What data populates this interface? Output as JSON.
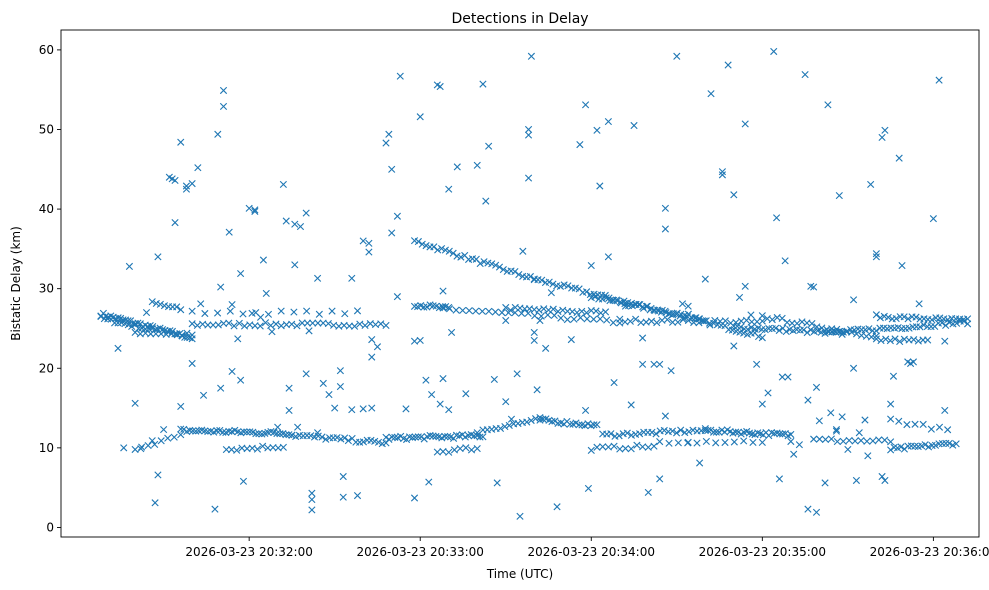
{
  "chart_data": {
    "type": "scatter",
    "title": "Detections in Delay",
    "xlabel": "Time (UTC)",
    "ylabel": "Bistatic Delay (km)",
    "x_unit": "seconds after 2026-03-23 20:30:00 UTC",
    "xlim": [
      54,
      376
    ],
    "ylim": [
      -1.2,
      62.5
    ],
    "grid": false,
    "marker": "x",
    "color": "#1f77b4",
    "x_ticks": [
      {
        "value": 120,
        "label": "2026-03-23 20:32:00"
      },
      {
        "value": 180,
        "label": "2026-03-23 20:33:00"
      },
      {
        "value": 240,
        "label": "2026-03-23 20:34:00"
      },
      {
        "value": 300,
        "label": "2026-03-23 20:35:00"
      },
      {
        "value": 360,
        "label": "2026-03-23 20:36:00"
      }
    ],
    "y_ticks": [
      {
        "value": 0,
        "label": "0"
      },
      {
        "value": 10,
        "label": "10"
      },
      {
        "value": 20,
        "label": "20"
      },
      {
        "value": 30,
        "label": "30"
      },
      {
        "value": 40,
        "label": "40"
      },
      {
        "value": 50,
        "label": "50"
      },
      {
        "value": 60,
        "label": "60"
      }
    ],
    "tracks": [
      {
        "from": [
          68,
          26.8
        ],
        "to": [
          100,
          23.8
        ],
        "count": 38
      },
      {
        "from": [
          68,
          26.3
        ],
        "to": [
          86,
          24.8
        ],
        "count": 16
      },
      {
        "from": [
          80,
          24.5
        ],
        "to": [
          100,
          24.2
        ],
        "count": 12
      },
      {
        "from": [
          86,
          28.2
        ],
        "to": [
          96,
          27.4
        ],
        "count": 8
      },
      {
        "from": [
          100,
          25.5
        ],
        "to": [
          168,
          25.5
        ],
        "count": 38
      },
      {
        "from": [
          100,
          27.0
        ],
        "to": [
          158,
          27.0
        ],
        "count": 14
      },
      {
        "from": [
          178,
          36.0
        ],
        "to": [
          220,
          31.2
        ],
        "count": 32
      },
      {
        "from": [
          220,
          31.2
        ],
        "to": [
          300,
          24.0
        ],
        "count": 62
      },
      {
        "from": [
          240,
          29.0
        ],
        "to": [
          278,
          26.3
        ],
        "count": 30
      },
      {
        "from": [
          178,
          28.0
        ],
        "to": [
          190,
          27.5
        ],
        "count": 12
      },
      {
        "from": [
          188,
          27.5
        ],
        "to": [
          250,
          25.8
        ],
        "count": 28
      },
      {
        "from": [
          210,
          27.5
        ],
        "to": [
          245,
          27.0
        ],
        "count": 22
      },
      {
        "from": [
          250,
          26.0
        ],
        "to": [
          300,
          25.8
        ],
        "count": 28
      },
      {
        "from": [
          290,
          25.2
        ],
        "to": [
          328,
          24.4
        ],
        "count": 32
      },
      {
        "from": [
          300,
          26.5
        ],
        "to": [
          340,
          24.0
        ],
        "count": 24
      },
      {
        "from": [
          322,
          24.4
        ],
        "to": [
          372,
          25.8
        ],
        "count": 40
      },
      {
        "from": [
          340,
          26.5
        ],
        "to": [
          372,
          26.0
        ],
        "count": 24
      },
      {
        "from": [
          340,
          23.6
        ],
        "to": [
          358,
          23.4
        ],
        "count": 12
      },
      {
        "from": [
          80,
          10.0
        ],
        "to": [
          96,
          11.5
        ],
        "count": 8
      },
      {
        "from": [
          96,
          12.2
        ],
        "to": [
          135,
          11.8
        ],
        "count": 38
      },
      {
        "from": [
          112,
          9.8
        ],
        "to": [
          132,
          10.2
        ],
        "count": 12
      },
      {
        "from": [
          135,
          11.6
        ],
        "to": [
          168,
          10.6
        ],
        "count": 26
      },
      {
        "from": [
          168,
          11.2
        ],
        "to": [
          202,
          11.5
        ],
        "count": 34
      },
      {
        "from": [
          186,
          9.5
        ],
        "to": [
          200,
          10.0
        ],
        "count": 8
      },
      {
        "from": [
          202,
          12.2
        ],
        "to": [
          222,
          13.6
        ],
        "count": 14
      },
      {
        "from": [
          222,
          13.5
        ],
        "to": [
          242,
          12.8
        ],
        "count": 20
      },
      {
        "from": [
          240,
          9.9
        ],
        "to": [
          262,
          10.2
        ],
        "count": 12
      },
      {
        "from": [
          244,
          11.6
        ],
        "to": [
          280,
          12.2
        ],
        "count": 26
      },
      {
        "from": [
          280,
          12.2
        ],
        "to": [
          310,
          11.6
        ],
        "count": 32
      },
      {
        "from": [
          264,
          10.8
        ],
        "to": [
          300,
          10.8
        ],
        "count": 12
      },
      {
        "from": [
          318,
          11.0
        ],
        "to": [
          345,
          10.8
        ],
        "count": 14
      },
      {
        "from": [
          345,
          9.8
        ],
        "to": [
          368,
          10.6
        ],
        "count": 20
      },
      {
        "from": [
          345,
          13.5
        ],
        "to": [
          365,
          12.2
        ],
        "count": 8
      }
    ],
    "points": [
      [
        74,
        22.5
      ],
      [
        76,
        10.0
      ],
      [
        78,
        32.8
      ],
      [
        80,
        15.6
      ],
      [
        82,
        9.9
      ],
      [
        84,
        27.0
      ],
      [
        86,
        10.9
      ],
      [
        88,
        34.0
      ],
      [
        88,
        6.6
      ],
      [
        87,
        3.1
      ],
      [
        90,
        12.3
      ],
      [
        92,
        44.0
      ],
      [
        93,
        43.8
      ],
      [
        94,
        43.6
      ],
      [
        94,
        38.3
      ],
      [
        96,
        48.4
      ],
      [
        96,
        15.2
      ],
      [
        98,
        42.9
      ],
      [
        98,
        42.5
      ],
      [
        100,
        43.2
      ],
      [
        100,
        20.6
      ],
      [
        102,
        45.2
      ],
      [
        103,
        28.1
      ],
      [
        104,
        16.6
      ],
      [
        108,
        2.3
      ],
      [
        109,
        49.4
      ],
      [
        111,
        54.9
      ],
      [
        111,
        52.9
      ],
      [
        110,
        30.2
      ],
      [
        110,
        17.5
      ],
      [
        113,
        37.1
      ],
      [
        114,
        28.0
      ],
      [
        114,
        19.6
      ],
      [
        116,
        23.7
      ],
      [
        117,
        31.9
      ],
      [
        117,
        18.5
      ],
      [
        118,
        5.8
      ],
      [
        120,
        40.1
      ],
      [
        121,
        26.9
      ],
      [
        122,
        39.9
      ],
      [
        122,
        39.7
      ],
      [
        124,
        26.4
      ],
      [
        125,
        33.6
      ],
      [
        126,
        29.4
      ],
      [
        128,
        24.6
      ],
      [
        130,
        12.6
      ],
      [
        132,
        43.1
      ],
      [
        133,
        38.5
      ],
      [
        134,
        17.5
      ],
      [
        134,
        14.7
      ],
      [
        136,
        38.1
      ],
      [
        136,
        33.0
      ],
      [
        137,
        12.6
      ],
      [
        138,
        37.8
      ],
      [
        140,
        39.5
      ],
      [
        140,
        19.3
      ],
      [
        141,
        24.7
      ],
      [
        142,
        4.3
      ],
      [
        142,
        2.2
      ],
      [
        142,
        3.5
      ],
      [
        144,
        31.3
      ],
      [
        144,
        11.9
      ],
      [
        146,
        18.1
      ],
      [
        148,
        16.7
      ],
      [
        150,
        15.0
      ],
      [
        152,
        19.7
      ],
      [
        152,
        17.7
      ],
      [
        153,
        6.4
      ],
      [
        153,
        3.8
      ],
      [
        156,
        31.3
      ],
      [
        156,
        14.8
      ],
      [
        158,
        4.0
      ],
      [
        160,
        36.0
      ],
      [
        160,
        14.9
      ],
      [
        162,
        35.7
      ],
      [
        162,
        34.6
      ],
      [
        163,
        23.6
      ],
      [
        163,
        21.4
      ],
      [
        163,
        15.0
      ],
      [
        165,
        22.7
      ],
      [
        168,
        48.3
      ],
      [
        169,
        49.4
      ],
      [
        170,
        45.0
      ],
      [
        170,
        37.0
      ],
      [
        172,
        39.1
      ],
      [
        172,
        29.0
      ],
      [
        173,
        56.7
      ],
      [
        175,
        14.9
      ],
      [
        178,
        3.7
      ],
      [
        178,
        23.4
      ],
      [
        180,
        51.6
      ],
      [
        180,
        23.5
      ],
      [
        182,
        18.5
      ],
      [
        183,
        5.7
      ],
      [
        184,
        16.7
      ],
      [
        186,
        55.6
      ],
      [
        187,
        55.4
      ],
      [
        187,
        15.5
      ],
      [
        188,
        18.7
      ],
      [
        188,
        29.7
      ],
      [
        190,
        42.5
      ],
      [
        190,
        14.8
      ],
      [
        191,
        24.5
      ],
      [
        193,
        45.3
      ],
      [
        196,
        16.8
      ],
      [
        200,
        45.5
      ],
      [
        200,
        11.9
      ],
      [
        202,
        55.7
      ],
      [
        203,
        41.0
      ],
      [
        204,
        47.9
      ],
      [
        206,
        18.6
      ],
      [
        207,
        5.6
      ],
      [
        210,
        26.0
      ],
      [
        210,
        15.8
      ],
      [
        212,
        13.6
      ],
      [
        214,
        19.3
      ],
      [
        215,
        1.4
      ],
      [
        216,
        34.7
      ],
      [
        218,
        50.0
      ],
      [
        218,
        49.3
      ],
      [
        218,
        43.9
      ],
      [
        219,
        59.2
      ],
      [
        220,
        23.5
      ],
      [
        220,
        24.5
      ],
      [
        221,
        17.3
      ],
      [
        222,
        26.0
      ],
      [
        224,
        22.5
      ],
      [
        226,
        29.5
      ],
      [
        228,
        2.6
      ],
      [
        233,
        23.6
      ],
      [
        236,
        48.1
      ],
      [
        238,
        53.1
      ],
      [
        238,
        14.7
      ],
      [
        239,
        4.9
      ],
      [
        240,
        32.9
      ],
      [
        242,
        49.9
      ],
      [
        243,
        42.9
      ],
      [
        246,
        51.0
      ],
      [
        246,
        34.0
      ],
      [
        248,
        18.2
      ],
      [
        252,
        27.8
      ],
      [
        254,
        15.4
      ],
      [
        255,
        50.5
      ],
      [
        258,
        20.5
      ],
      [
        258,
        23.8
      ],
      [
        260,
        4.4
      ],
      [
        262,
        20.5
      ],
      [
        264,
        20.5
      ],
      [
        264,
        6.1
      ],
      [
        266,
        40.1
      ],
      [
        266,
        37.5
      ],
      [
        266,
        14.0
      ],
      [
        268,
        19.7
      ],
      [
        270,
        59.2
      ],
      [
        272,
        28.1
      ],
      [
        274,
        27.8
      ],
      [
        274,
        10.7
      ],
      [
        278,
        8.1
      ],
      [
        280,
        31.2
      ],
      [
        282,
        54.5
      ],
      [
        286,
        44.7
      ],
      [
        286,
        44.3
      ],
      [
        288,
        58.1
      ],
      [
        290,
        41.8
      ],
      [
        290,
        22.8
      ],
      [
        292,
        28.9
      ],
      [
        294,
        50.7
      ],
      [
        294,
        30.3
      ],
      [
        296,
        26.7
      ],
      [
        298,
        20.5
      ],
      [
        300,
        15.5
      ],
      [
        302,
        16.9
      ],
      [
        304,
        59.8
      ],
      [
        305,
        38.9
      ],
      [
        306,
        6.1
      ],
      [
        307,
        18.9
      ],
      [
        308,
        33.5
      ],
      [
        309,
        18.9
      ],
      [
        310,
        10.8
      ],
      [
        311,
        9.2
      ],
      [
        313,
        10.4
      ],
      [
        315,
        56.9
      ],
      [
        316,
        16.0
      ],
      [
        316,
        2.3
      ],
      [
        317,
        30.3
      ],
      [
        318,
        30.2
      ],
      [
        319,
        17.6
      ],
      [
        319,
        1.9
      ],
      [
        320,
        13.4
      ],
      [
        322,
        5.6
      ],
      [
        323,
        53.1
      ],
      [
        324,
        14.4
      ],
      [
        326,
        12.3
      ],
      [
        326,
        12.1
      ],
      [
        327,
        41.7
      ],
      [
        328,
        13.9
      ],
      [
        330,
        9.8
      ],
      [
        332,
        28.6
      ],
      [
        332,
        20.0
      ],
      [
        333,
        5.9
      ],
      [
        334,
        11.9
      ],
      [
        336,
        13.5
      ],
      [
        337,
        9.0
      ],
      [
        338,
        43.1
      ],
      [
        340,
        34.4
      ],
      [
        340,
        34.0
      ],
      [
        342,
        49.0
      ],
      [
        342,
        6.4
      ],
      [
        343,
        49.9
      ],
      [
        343,
        5.9
      ],
      [
        345,
        15.5
      ],
      [
        346,
        19.0
      ],
      [
        348,
        46.4
      ],
      [
        349,
        32.9
      ],
      [
        351,
        20.8
      ],
      [
        352,
        20.6
      ],
      [
        353,
        20.8
      ],
      [
        355,
        28.1
      ],
      [
        360,
        38.8
      ],
      [
        362,
        56.2
      ],
      [
        364,
        23.4
      ],
      [
        364,
        14.7
      ]
    ]
  }
}
